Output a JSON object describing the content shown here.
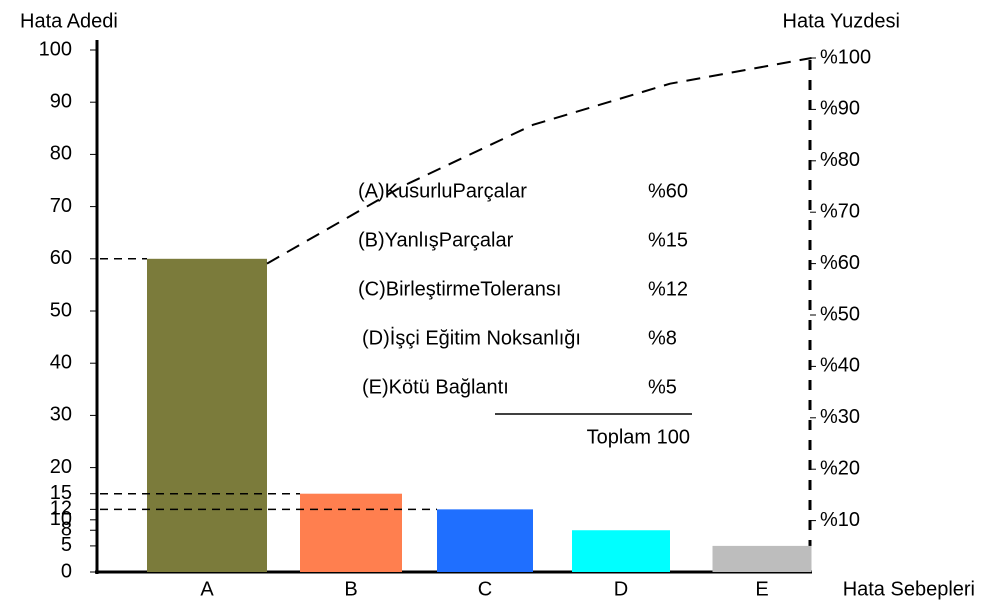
{
  "chart_data": {
    "type": "pareto",
    "y_label": "Hata Adedi",
    "y2_label": "Hata Yuzdesi",
    "x_label": "Hata Sebepleri",
    "categories": [
      "A",
      "B",
      "C",
      "D",
      "E"
    ],
    "series": [
      {
        "values": [
          60,
          15,
          12,
          8,
          5
        ],
        "colors": [
          "#7b7b3b",
          "#ff7f4f",
          "#1f6fff",
          "#00ffff",
          "#bdbdbd"
        ]
      },
      {
        "axis": "y2",
        "values": [
          60,
          75,
          87,
          95,
          100
        ],
        "color": "#000000",
        "dashed": true
      }
    ],
    "ylim": [
      0,
      100
    ],
    "yticks": [
      0,
      5,
      8,
      10,
      12,
      15,
      20,
      30,
      40,
      50,
      60,
      70,
      80,
      90,
      100
    ],
    "y2lim": [
      0,
      100
    ],
    "y2ticks": [
      {
        "value": 10,
        "label": "%10"
      },
      {
        "value": 20,
        "label": "%20"
      },
      {
        "value": 30,
        "label": "%30"
      },
      {
        "value": 40,
        "label": "%40"
      },
      {
        "value": 50,
        "label": "%50"
      },
      {
        "value": 60,
        "label": "%60"
      },
      {
        "value": 70,
        "label": "%70"
      },
      {
        "value": 80,
        "label": "%80"
      },
      {
        "value": 90,
        "label": "%90"
      },
      {
        "value": 100,
        "label": "%100"
      }
    ],
    "info_box": {
      "rows": [
        {
          "label": "(A)KusurluParçalar",
          "percent": "%60"
        },
        {
          "label": "(B)YanlışParçalar",
          "percent": "%15"
        },
        {
          "label": "(C)BirleştirmeToleransı",
          "percent": "%12"
        },
        {
          "label": "(D)İşçi Eğitim Noksanlığı",
          "percent": "%8"
        },
        {
          "label": "(E)Kötü Bağlantı",
          "percent": "%5"
        }
      ],
      "total": "Toplam 100"
    }
  }
}
